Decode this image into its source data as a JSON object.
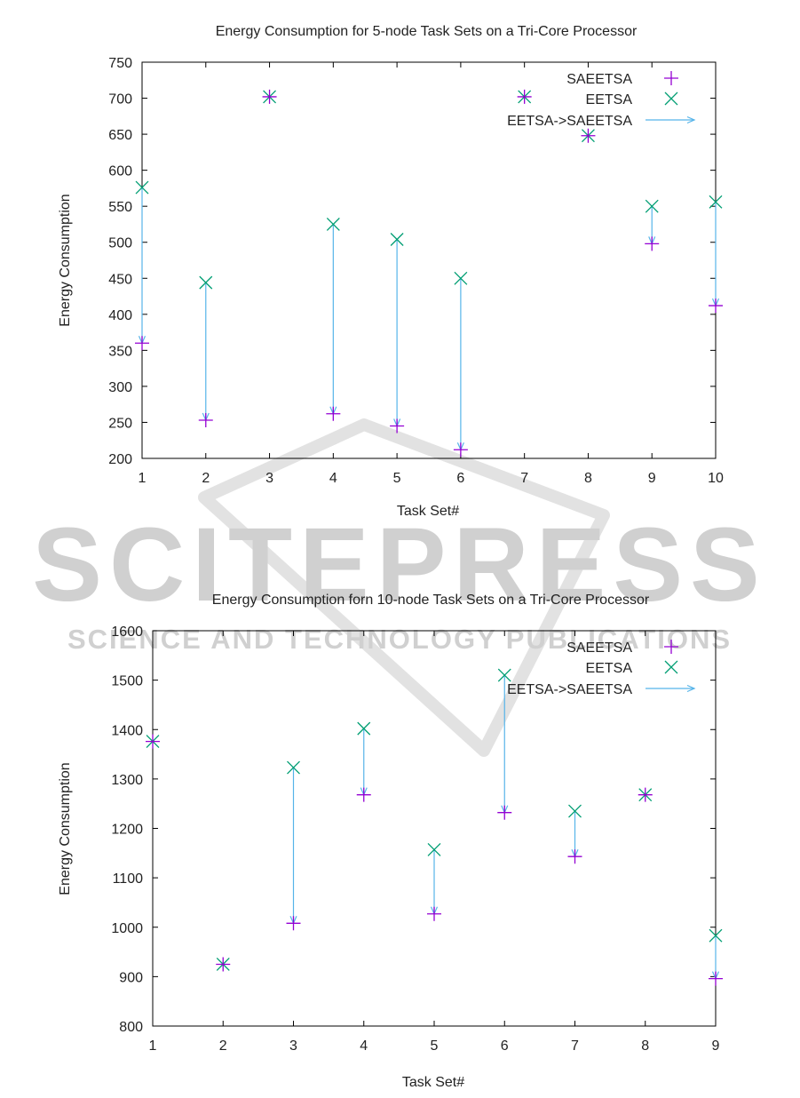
{
  "watermark": {
    "word": "SCITEPRESS",
    "subtitle": "SCIENCE AND TECHNOLOGY PUBLICATIONS",
    "color": "#d0d0d0"
  },
  "colors": {
    "saeetsa": "#9400d3",
    "eetsa": "#009e73",
    "arrow": "#56b4e9"
  },
  "chart_data": [
    {
      "type": "scatter",
      "title": "Energy Consumption for 5-node Task Sets on a Tri-Core Processor",
      "xlabel": "Task Set#",
      "ylabel": "Energy Consumption",
      "xlim": [
        1,
        10
      ],
      "ylim": [
        200,
        750
      ],
      "xticks": [
        1,
        2,
        3,
        4,
        5,
        6,
        7,
        8,
        9,
        10
      ],
      "yticks": [
        200,
        250,
        300,
        350,
        400,
        450,
        500,
        550,
        600,
        650,
        700,
        750
      ],
      "grid": false,
      "legend_position": "top-right",
      "x": [
        1,
        2,
        3,
        4,
        5,
        6,
        7,
        8,
        9,
        10
      ],
      "series": [
        {
          "name": "SAEETSA",
          "marker": "plus",
          "values": [
            360,
            253,
            702,
            262,
            245,
            212,
            702,
            648,
            498,
            412
          ]
        },
        {
          "name": "EETSA",
          "marker": "cross",
          "values": [
            576,
            444,
            702,
            525,
            504,
            450,
            702,
            648,
            550,
            556
          ]
        },
        {
          "name": "EETSA->SAEETSA",
          "marker": "arrow"
        }
      ]
    },
    {
      "type": "scatter",
      "title": "Energy Consumption forn 10-node Task Sets on a Tri-Core Processor",
      "xlabel": "Task Set#",
      "ylabel": "Energy Consumption",
      "xlim": [
        1,
        9
      ],
      "ylim": [
        800,
        1600
      ],
      "xticks": [
        1,
        2,
        3,
        4,
        5,
        6,
        7,
        8,
        9
      ],
      "yticks": [
        800,
        900,
        1000,
        1100,
        1200,
        1300,
        1400,
        1500,
        1600
      ],
      "grid": false,
      "legend_position": "top-right",
      "x": [
        1,
        2,
        3,
        4,
        5,
        6,
        7,
        8,
        9
      ],
      "series": [
        {
          "name": "SAEETSA",
          "marker": "plus",
          "values": [
            1376,
            925,
            1008,
            1268,
            1027,
            1232,
            1143,
            1268,
            896
          ]
        },
        {
          "name": "EETSA",
          "marker": "cross",
          "values": [
            1376,
            925,
            1323,
            1402,
            1157,
            1510,
            1235,
            1268,
            983
          ]
        },
        {
          "name": "EETSA->SAEETSA",
          "marker": "arrow"
        }
      ]
    }
  ]
}
